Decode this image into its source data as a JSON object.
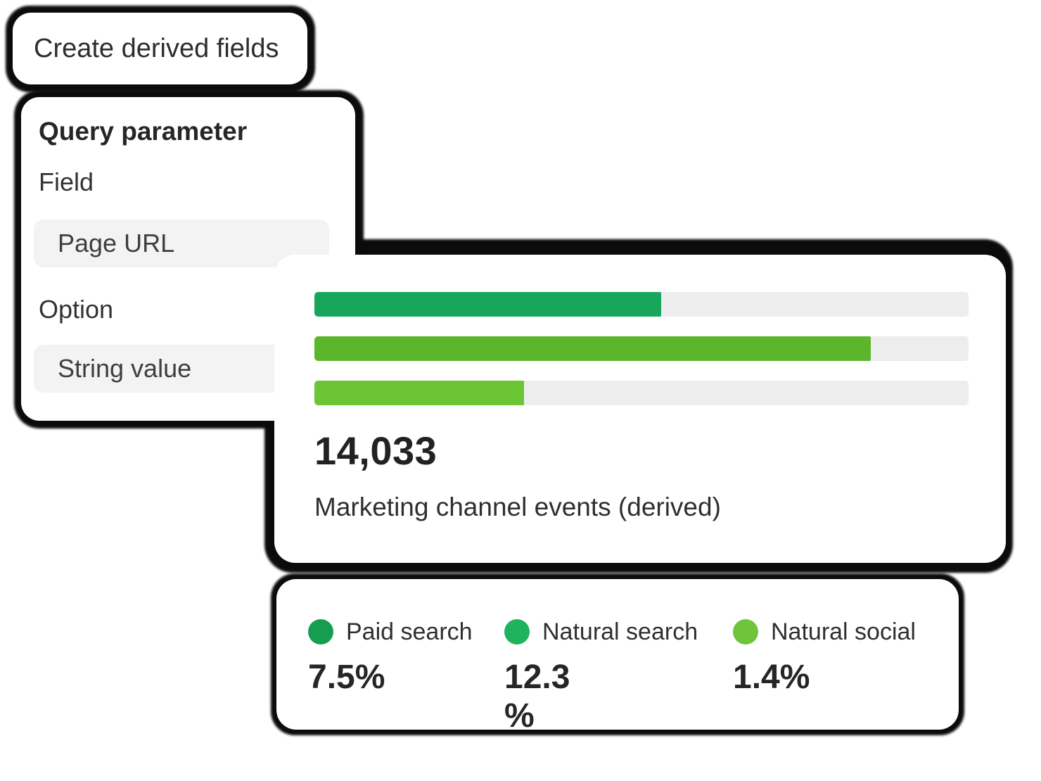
{
  "cards": {
    "create_fields": {
      "title": "Create derived fields"
    },
    "query_parameter": {
      "title": "Query parameter",
      "fields": [
        {
          "label": "Field",
          "value": "Page URL"
        },
        {
          "label": "Option",
          "value": "String value"
        }
      ]
    },
    "metric": {
      "value": "14,033",
      "label": "Marketing channel events (derived)"
    },
    "legend": {
      "items": [
        {
          "label": "Paid search",
          "value": "7.5%",
          "color": "#169D4F"
        },
        {
          "label": "Natural search",
          "value": "12.3 %",
          "color": "#20B25C"
        },
        {
          "label": "Natural social",
          "value": "1.4%",
          "color": "#6FC43C"
        }
      ]
    }
  },
  "chart_data": {
    "type": "bar",
    "orientation": "horizontal",
    "title": "Marketing channel events (derived)",
    "total_label": "14,033",
    "categories": [
      "Paid search",
      "Natural search",
      "Natural social"
    ],
    "bars": [
      {
        "category": "Paid search",
        "fill_percent": 53,
        "color": "#17A65B",
        "legend_color": "#169D4F",
        "value_label": "7.5%"
      },
      {
        "category": "Natural search",
        "fill_percent": 85,
        "color": "#5CB62B",
        "legend_color": "#20B25C",
        "value_label": "12.3 %"
      },
      {
        "category": "Natural social",
        "fill_percent": 32,
        "color": "#6CC534",
        "legend_color": "#6FC43C",
        "value_label": "1.4%"
      }
    ],
    "track_color": "#EDEDED",
    "xlim": [
      0,
      100
    ],
    "grid": false,
    "legend_position": "bottom-card"
  }
}
